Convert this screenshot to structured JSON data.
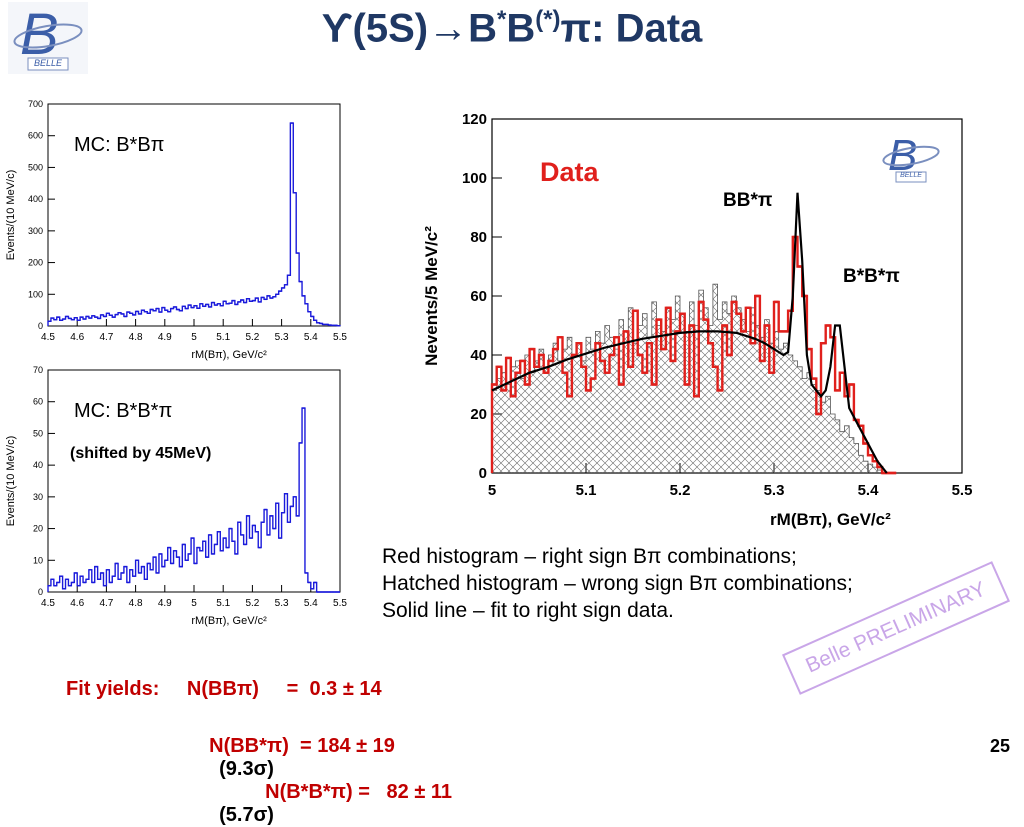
{
  "title": {
    "ups": "ϒ(5S)→B",
    "sup1": "*",
    "b": "B",
    "sup2": "(*)",
    "rest": "π: Data"
  },
  "logo": {
    "text": "BELLE"
  },
  "panel_top": {
    "label": "MC: B*Bπ"
  },
  "panel_bottom": {
    "label": "MC: B*B*π",
    "note": "(shifted by 45MeV)"
  },
  "panel_main": {
    "data_label": "Data",
    "peak1_label": "BB*π",
    "peak2_label": "B*B*π"
  },
  "caption": {
    "line1": "Red histogram – right sign Bπ combinations;",
    "line2": "Hatched histogram –  wrong sign Bπ combinations;",
    "line3": "Solid line – fit to right sign data."
  },
  "stamp": "Belle PRELIMINARY",
  "fit": {
    "label": "Fit yields:",
    "row1": "N(BBπ)     =  0.3 ± 14",
    "row2a": "N(BB*π)  = 184 ± 19",
    "row2b": "(9.3σ)",
    "row2c": "N(B*B*π) =   82 ± 11",
    "row2d": "(5.7σ)"
  },
  "page_number": "25",
  "colors": {
    "title": "#1f3864",
    "red": "#e0201c",
    "mc_blue": "#1a1adb",
    "fit_text": "#c00000",
    "stamp": "#c9a6e8"
  },
  "chart_data": [
    {
      "type": "bar",
      "title": "",
      "xlabel": "rM(Bπ), GeV/c²",
      "ylabel": "Events/(10 MeV/c)",
      "xlim": [
        4.5,
        5.5
      ],
      "ylim": [
        0,
        700
      ],
      "xticks": [
        "4.5",
        "4.6",
        "4.7",
        "4.8",
        "4.9",
        "5",
        "5.1",
        "5.2",
        "5.3",
        "5.4",
        "5.5"
      ],
      "yticks": [
        "0",
        "100",
        "200",
        "300",
        "400",
        "500",
        "600",
        "700"
      ],
      "x": [
        4.5,
        4.51,
        4.52,
        4.53,
        4.54,
        4.55,
        4.56,
        4.57,
        4.58,
        4.59,
        4.6,
        4.61,
        4.62,
        4.63,
        4.64,
        4.65,
        4.66,
        4.67,
        4.68,
        4.69,
        4.7,
        4.71,
        4.72,
        4.73,
        4.74,
        4.75,
        4.76,
        4.77,
        4.78,
        4.79,
        4.8,
        4.81,
        4.82,
        4.83,
        4.84,
        4.85,
        4.86,
        4.87,
        4.88,
        4.89,
        4.9,
        4.91,
        4.92,
        4.93,
        4.94,
        4.95,
        4.96,
        4.97,
        4.98,
        4.99,
        5.0,
        5.01,
        5.02,
        5.03,
        5.04,
        5.05,
        5.06,
        5.07,
        5.08,
        5.09,
        5.1,
        5.11,
        5.12,
        5.13,
        5.14,
        5.15,
        5.16,
        5.17,
        5.18,
        5.19,
        5.2,
        5.21,
        5.22,
        5.23,
        5.24,
        5.25,
        5.26,
        5.27,
        5.28,
        5.29,
        5.3,
        5.31,
        5.32,
        5.33,
        5.34,
        5.35,
        5.36,
        5.37,
        5.38,
        5.39,
        5.4,
        5.41,
        5.42,
        5.43,
        5.44,
        5.45,
        5.46,
        5.47,
        5.48,
        5.49
      ],
      "values": [
        15,
        25,
        20,
        28,
        18,
        22,
        30,
        24,
        20,
        26,
        18,
        28,
        22,
        30,
        25,
        32,
        28,
        24,
        35,
        30,
        40,
        34,
        28,
        36,
        42,
        38,
        30,
        44,
        40,
        35,
        46,
        38,
        50,
        45,
        40,
        52,
        48,
        55,
        44,
        58,
        50,
        45,
        55,
        60,
        52,
        48,
        62,
        55,
        66,
        58,
        64,
        56,
        70,
        62,
        68,
        60,
        74,
        66,
        70,
        64,
        78,
        70,
        72,
        80,
        68,
        76,
        82,
        74,
        86,
        78,
        80,
        88,
        76,
        90,
        84,
        95,
        88,
        92,
        100,
        110,
        120,
        130,
        160,
        640,
        420,
        230,
        140,
        95,
        70,
        45,
        30,
        18,
        10,
        8,
        5,
        5,
        3,
        2,
        2,
        1
      ]
    },
    {
      "type": "bar",
      "title": "",
      "xlabel": "rM(Bπ), GeV/c²",
      "ylabel": "Events/(10 MeV/c)",
      "xlim": [
        4.5,
        5.5
      ],
      "ylim": [
        0,
        70
      ],
      "xticks": [
        "4.5",
        "4.6",
        "4.7",
        "4.8",
        "4.9",
        "5",
        "5.1",
        "5.2",
        "5.3",
        "5.4",
        "5.5"
      ],
      "yticks": [
        "0",
        "10",
        "20",
        "30",
        "40",
        "50",
        "60",
        "70"
      ],
      "x": [
        4.5,
        4.51,
        4.52,
        4.53,
        4.54,
        4.55,
        4.56,
        4.57,
        4.58,
        4.59,
        4.6,
        4.61,
        4.62,
        4.63,
        4.64,
        4.65,
        4.66,
        4.67,
        4.68,
        4.69,
        4.7,
        4.71,
        4.72,
        4.73,
        4.74,
        4.75,
        4.76,
        4.77,
        4.78,
        4.79,
        4.8,
        4.81,
        4.82,
        4.83,
        4.84,
        4.85,
        4.86,
        4.87,
        4.88,
        4.89,
        4.9,
        4.91,
        4.92,
        4.93,
        4.94,
        4.95,
        4.96,
        4.97,
        4.98,
        4.99,
        5.0,
        5.01,
        5.02,
        5.03,
        5.04,
        5.05,
        5.06,
        5.07,
        5.08,
        5.09,
        5.1,
        5.11,
        5.12,
        5.13,
        5.14,
        5.15,
        5.16,
        5.17,
        5.18,
        5.19,
        5.2,
        5.21,
        5.22,
        5.23,
        5.24,
        5.25,
        5.26,
        5.27,
        5.28,
        5.29,
        5.3,
        5.31,
        5.32,
        5.33,
        5.34,
        5.35,
        5.36,
        5.37,
        5.38,
        5.39,
        5.4,
        5.41,
        5.42,
        5.43,
        5.44,
        5.45,
        5.46,
        5.47,
        5.48,
        5.49
      ],
      "values": [
        2,
        4,
        2,
        3,
        5,
        1,
        4,
        2,
        3,
        6,
        2,
        5,
        3,
        4,
        7,
        3,
        8,
        4,
        6,
        2,
        7,
        3,
        5,
        9,
        4,
        6,
        8,
        3,
        7,
        5,
        10,
        6,
        8,
        4,
        9,
        7,
        11,
        6,
        12,
        8,
        10,
        14,
        9,
        13,
        11,
        8,
        15,
        10,
        12,
        17,
        9,
        14,
        13,
        16,
        11,
        18,
        12,
        15,
        19,
        13,
        17,
        14,
        20,
        16,
        12,
        22,
        18,
        15,
        24,
        17,
        21,
        19,
        14,
        22,
        26,
        18,
        24,
        20,
        28,
        17,
        25,
        31,
        22,
        27,
        30,
        24,
        47,
        58,
        6,
        3,
        1,
        3,
        0,
        0,
        0,
        0,
        0,
        0,
        0,
        0
      ]
    },
    {
      "type": "bar",
      "title": "",
      "xlabel": "rM(Bπ), GeV/c²",
      "ylabel": "Nevents/5 MeV/c²",
      "xlim": [
        5.0,
        5.5
      ],
      "ylim": [
        0,
        120
      ],
      "xticks": [
        "5",
        "5.1",
        "5.2",
        "5.3",
        "5.4",
        "5.5"
      ],
      "yticks": [
        "0",
        "20",
        "40",
        "60",
        "80",
        "100",
        "120"
      ],
      "x": [
        5.0,
        5.005,
        5.01,
        5.015,
        5.02,
        5.025,
        5.03,
        5.035,
        5.04,
        5.045,
        5.05,
        5.055,
        5.06,
        5.065,
        5.07,
        5.075,
        5.08,
        5.085,
        5.09,
        5.095,
        5.1,
        5.105,
        5.11,
        5.115,
        5.12,
        5.125,
        5.13,
        5.135,
        5.14,
        5.145,
        5.15,
        5.155,
        5.16,
        5.165,
        5.17,
        5.175,
        5.18,
        5.185,
        5.19,
        5.195,
        5.2,
        5.205,
        5.21,
        5.215,
        5.22,
        5.225,
        5.23,
        5.235,
        5.24,
        5.245,
        5.25,
        5.255,
        5.26,
        5.265,
        5.27,
        5.275,
        5.28,
        5.285,
        5.29,
        5.295,
        5.3,
        5.305,
        5.31,
        5.315,
        5.32,
        5.325,
        5.33,
        5.335,
        5.34,
        5.345,
        5.35,
        5.355,
        5.36,
        5.365,
        5.37,
        5.375,
        5.38,
        5.385,
        5.39,
        5.395,
        5.4,
        5.405,
        5.41,
        5.415,
        5.42,
        5.425
      ],
      "series": [
        {
          "values": [
            30,
            36,
            28,
            39,
            26,
            34,
            38,
            30,
            42,
            36,
            40,
            34,
            38,
            42,
            46,
            34,
            26,
            40,
            44,
            36,
            28,
            32,
            44,
            38,
            34,
            40,
            46,
            30,
            48,
            36,
            55,
            40,
            34,
            44,
            30,
            52,
            42,
            56,
            38,
            48,
            54,
            30,
            50,
            26,
            58,
            52,
            44,
            36,
            28,
            50,
            40,
            58,
            54,
            48,
            56,
            44,
            60,
            38,
            50,
            34,
            58,
            48,
            48,
            55,
            80,
            70,
            60,
            42,
            32,
            20,
            44,
            50,
            46,
            28,
            34,
            26,
            30,
            18,
            16,
            10,
            6,
            4,
            2,
            0,
            0,
            0
          ]
        },
        {
          "values": [
            28,
            32,
            34,
            30,
            36,
            38,
            32,
            40,
            34,
            38,
            42,
            36,
            40,
            44,
            38,
            42,
            46,
            40,
            44,
            38,
            46,
            42,
            48,
            44,
            50,
            46,
            42,
            52,
            48,
            56,
            44,
            50,
            54,
            46,
            58,
            50,
            48,
            56,
            52,
            60,
            54,
            48,
            58,
            50,
            62,
            56,
            50,
            64,
            52,
            58,
            54,
            60,
            56,
            52,
            48,
            56,
            50,
            46,
            52,
            44,
            48,
            42,
            44,
            40,
            38,
            36,
            32,
            34,
            30,
            28,
            24,
            26,
            20,
            18,
            14,
            16,
            12,
            10,
            6,
            4,
            3,
            2,
            1,
            0,
            0,
            0
          ]
        }
      ],
      "fit_curve": {
        "x": [
          5.0,
          5.02,
          5.04,
          5.06,
          5.08,
          5.1,
          5.12,
          5.14,
          5.16,
          5.18,
          5.2,
          5.22,
          5.24,
          5.26,
          5.28,
          5.29,
          5.3,
          5.31,
          5.315,
          5.32,
          5.325,
          5.33,
          5.335,
          5.34,
          5.35,
          5.355,
          5.36,
          5.365,
          5.37,
          5.375,
          5.38,
          5.39,
          5.4,
          5.41,
          5.42
        ],
        "y": [
          28,
          31,
          34,
          36,
          38.5,
          40.5,
          42.5,
          44,
          45.5,
          46.5,
          47.5,
          48,
          48,
          47.5,
          45.5,
          44,
          42,
          40,
          41,
          60,
          95,
          72,
          40,
          30,
          26,
          28,
          36,
          50,
          50,
          36,
          22,
          16,
          10,
          4,
          0
        ]
      },
      "annotations": [
        "Data",
        "BB*π",
        "B*B*π"
      ]
    }
  ]
}
